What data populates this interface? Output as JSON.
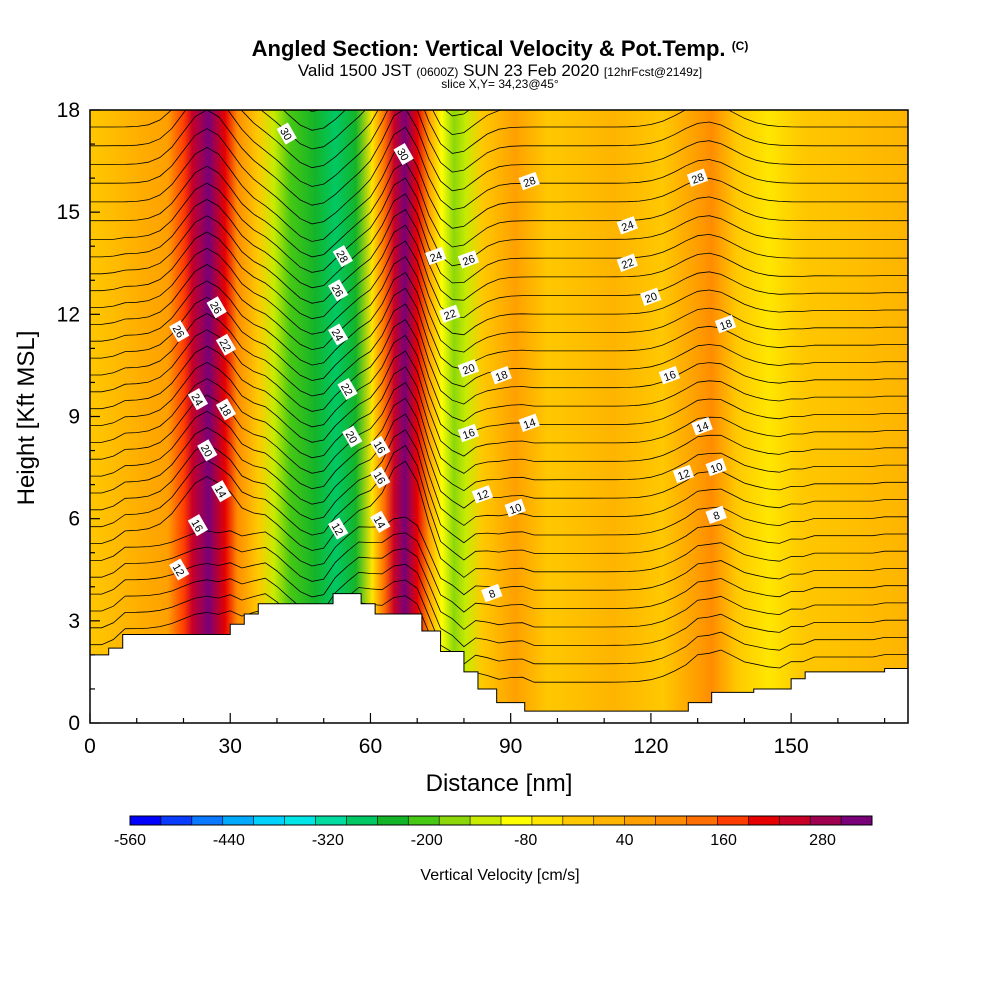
{
  "header": {
    "title": "Angled Section: Vertical Velocity & Pot.Temp.",
    "title_unit": "(C)",
    "subtitle_pre": "Valid 1500 JST",
    "subtitle_utc": "(0600Z)",
    "subtitle_post": "SUN 23 Feb 2020",
    "subtitle_fcst": "[12hrFcst@2149z]",
    "slice": "slice X,Y= 34,23@45°"
  },
  "chart_data": {
    "type": "heatmap",
    "xlabel": "Distance [nm]",
    "ylabel": "Height [Kft MSL]",
    "xlim": [
      0,
      175
    ],
    "ylim": [
      0,
      18
    ],
    "x_ticks": [
      0,
      30,
      60,
      90,
      120,
      150
    ],
    "y_ticks": [
      0,
      3,
      6,
      9,
      12,
      15,
      18
    ],
    "colorbar": {
      "label": "Vertical Velocity [cm/s]",
      "ticks": [
        "-560",
        "-440",
        "-320",
        "-200",
        "-80",
        "40",
        "160",
        "280"
      ],
      "range": [
        -560,
        340
      ],
      "step": 40,
      "colors": [
        "#0000ff",
        "#0a3cff",
        "#0a78ff",
        "#00aaff",
        "#00d2ff",
        "#00e6e6",
        "#00dca0",
        "#00c864",
        "#14b428",
        "#46c814",
        "#8cd70a",
        "#c8eb00",
        "#ffff00",
        "#ffe600",
        "#ffc800",
        "#ffb400",
        "#ffa000",
        "#ff8c00",
        "#ff6e00",
        "#ff3c00",
        "#e60000",
        "#c80028",
        "#a00050",
        "#780078"
      ]
    },
    "terrain_profile": {
      "x": [
        0,
        4,
        7,
        20,
        30,
        33,
        36,
        39,
        52,
        58,
        61,
        63,
        67,
        71,
        75,
        80,
        83,
        87,
        93,
        100,
        120,
        128,
        133,
        142,
        150,
        153,
        158,
        170,
        175
      ],
      "z": [
        2.0,
        2.2,
        2.6,
        2.6,
        2.9,
        3.2,
        3.5,
        3.5,
        3.8,
        3.5,
        3.2,
        3.2,
        3.2,
        2.7,
        2.1,
        1.5,
        1.0,
        0.6,
        0.35,
        0.35,
        0.35,
        0.6,
        0.9,
        1.0,
        1.3,
        1.5,
        1.5,
        1.6,
        1.6
      ]
    },
    "vertical_velocity_features": [
      {
        "kind": "updraft",
        "x_center": 25,
        "value_max": 340
      },
      {
        "kind": "downdraft",
        "x_center": 48,
        "value_min": -230
      },
      {
        "kind": "updraft",
        "x_center": 67,
        "value_max": 340
      },
      {
        "kind": "downdraft",
        "x_center": 78,
        "value_min": -120
      },
      {
        "kind": "updraft",
        "x_center": 133,
        "value_max": 80
      }
    ],
    "theta_contour_labels": [
      {
        "text": "30",
        "x": 42,
        "z": 17.3
      },
      {
        "text": "30",
        "x": 67,
        "z": 16.7
      },
      {
        "text": "28",
        "x": 94,
        "z": 15.9
      },
      {
        "text": "28",
        "x": 130,
        "z": 16.0
      },
      {
        "text": "28",
        "x": 54,
        "z": 13.7
      },
      {
        "text": "26",
        "x": 53,
        "z": 12.7
      },
      {
        "text": "24",
        "x": 74,
        "z": 13.7
      },
      {
        "text": "26",
        "x": 81,
        "z": 13.6
      },
      {
        "text": "24",
        "x": 115,
        "z": 14.6
      },
      {
        "text": "22",
        "x": 115,
        "z": 13.5
      },
      {
        "text": "20",
        "x": 120,
        "z": 12.5
      },
      {
        "text": "26",
        "x": 27,
        "z": 12.2
      },
      {
        "text": "26",
        "x": 19,
        "z": 11.5
      },
      {
        "text": "22",
        "x": 29,
        "z": 11.1
      },
      {
        "text": "22",
        "x": 77,
        "z": 12.0
      },
      {
        "text": "24",
        "x": 53,
        "z": 11.4
      },
      {
        "text": "18",
        "x": 136,
        "z": 11.7
      },
      {
        "text": "20",
        "x": 81,
        "z": 10.4
      },
      {
        "text": "18",
        "x": 88,
        "z": 10.2
      },
      {
        "text": "16",
        "x": 124,
        "z": 10.2
      },
      {
        "text": "22",
        "x": 55,
        "z": 9.8
      },
      {
        "text": "24",
        "x": 23,
        "z": 9.5
      },
      {
        "text": "18",
        "x": 29,
        "z": 9.2
      },
      {
        "text": "14",
        "x": 94,
        "z": 8.8
      },
      {
        "text": "14",
        "x": 131,
        "z": 8.7
      },
      {
        "text": "16",
        "x": 81,
        "z": 8.5
      },
      {
        "text": "20",
        "x": 56,
        "z": 8.4
      },
      {
        "text": "20",
        "x": 25,
        "z": 8.0
      },
      {
        "text": "16",
        "x": 62,
        "z": 8.1
      },
      {
        "text": "10",
        "x": 134,
        "z": 7.5
      },
      {
        "text": "12",
        "x": 127,
        "z": 7.3
      },
      {
        "text": "16",
        "x": 62,
        "z": 7.2
      },
      {
        "text": "14",
        "x": 28,
        "z": 6.8
      },
      {
        "text": "12",
        "x": 84,
        "z": 6.7
      },
      {
        "text": "10",
        "x": 91,
        "z": 6.3
      },
      {
        "text": "8",
        "x": 134,
        "z": 6.1
      },
      {
        "text": "14",
        "x": 62,
        "z": 5.9
      },
      {
        "text": "16",
        "x": 23,
        "z": 5.8
      },
      {
        "text": "12",
        "x": 53,
        "z": 5.7
      },
      {
        "text": "12",
        "x": 19,
        "z": 4.5
      },
      {
        "text": "8",
        "x": 86,
        "z": 3.8
      }
    ],
    "grid": false
  }
}
